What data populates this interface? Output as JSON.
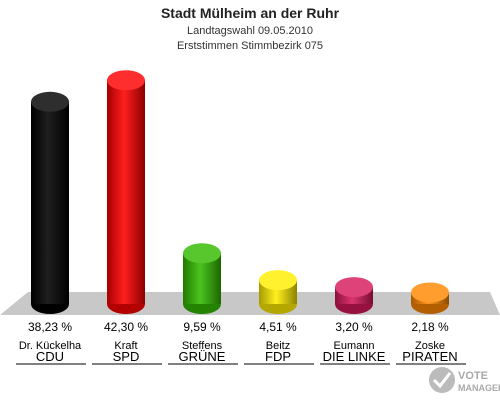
{
  "chart_data": {
    "type": "bar",
    "title": "Stadt Mülheim an der Ruhr",
    "subtitle_1": "Landtagswahl 09.05.2010",
    "subtitle_2": "Erststimmen Stimmbezirk 075",
    "categories": [
      "CDU",
      "SPD",
      "GRÜNE",
      "FDP",
      "DIE LINKE",
      "PIRATEN"
    ],
    "candidates": [
      "Dr. Kückelha",
      "Kraft",
      "Steffens",
      "Beitz",
      "Eumann",
      "Zoske"
    ],
    "values": [
      38.23,
      42.3,
      9.59,
      4.51,
      3.2,
      2.18
    ],
    "value_labels": [
      "38,23 %",
      "42,30 %",
      "9,59 %",
      "4,51 %",
      "3,20 %",
      "2,18 %"
    ],
    "colors": [
      "#000000",
      "#ff0000",
      "#33bb00",
      "#ffee00",
      "#d6185a",
      "#ff8800"
    ],
    "ylim": [
      0,
      45
    ],
    "grid": false
  },
  "logo": {
    "line1": "VOTE",
    "line2": "MANAGER"
  }
}
